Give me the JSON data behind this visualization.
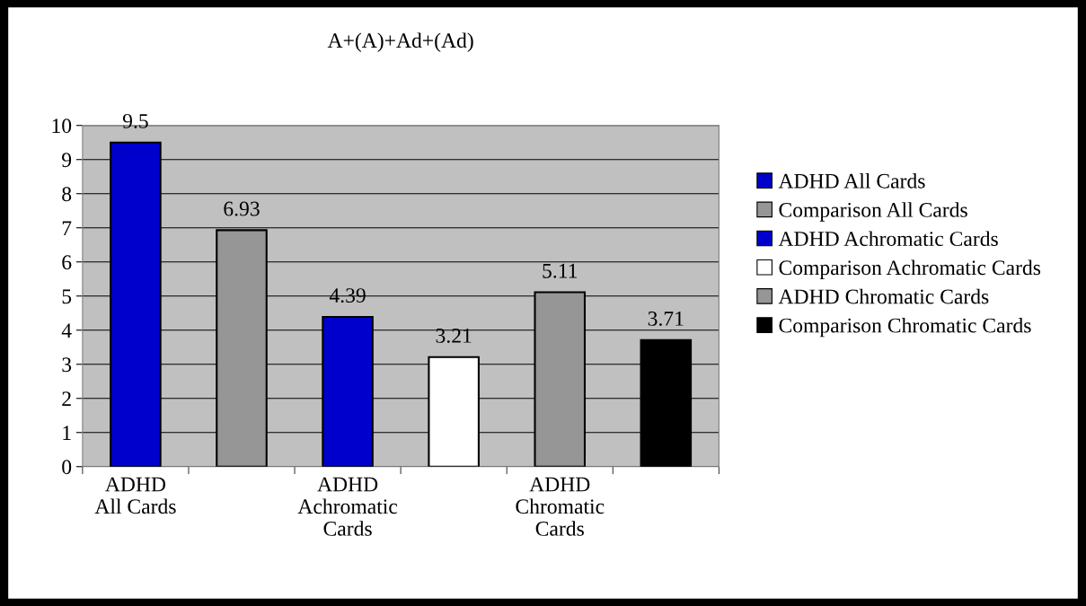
{
  "chart_data": {
    "type": "bar",
    "title": "A+(A)+Ad+(Ad)",
    "categories": [
      "ADHD All Cards",
      null,
      "ADHD Achromatic Cards",
      null,
      "ADHD Chromatic Cards",
      null
    ],
    "series": [
      {
        "name": "ADHD All Cards",
        "color": "#0000cc",
        "values": [
          9.5,
          null,
          null,
          null,
          null,
          null
        ]
      },
      {
        "name": "Comparison All Cards",
        "color": "#969696",
        "values": [
          null,
          6.93,
          null,
          null,
          null,
          null
        ]
      },
      {
        "name": "ADHD Achromatic Cards",
        "color": "#0000cc",
        "values": [
          null,
          null,
          4.39,
          null,
          null,
          null
        ]
      },
      {
        "name": "Comparison Achromatic Cards",
        "color": "#ffffff",
        "values": [
          null,
          null,
          null,
          3.21,
          null,
          null
        ]
      },
      {
        "name": "ADHD Chromatic Cards",
        "color": "#969696",
        "values": [
          null,
          null,
          null,
          null,
          5.11,
          null
        ]
      },
      {
        "name": "Comparison Chromatic Cards",
        "color": "#000000",
        "values": [
          null,
          null,
          null,
          null,
          null,
          3.71
        ]
      }
    ],
    "ylim": [
      0,
      10
    ],
    "yticks": [
      0,
      1,
      2,
      3,
      4,
      5,
      6,
      7,
      8,
      9,
      10
    ],
    "grid": "y",
    "legend": "right",
    "data_labels": true
  }
}
